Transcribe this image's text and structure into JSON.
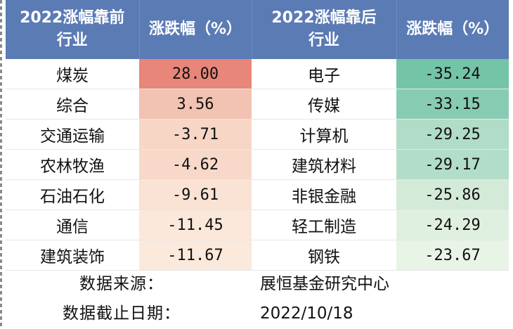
{
  "headers": {
    "top_industry_l1": "2022涨幅靠前",
    "top_industry_l2": "行业",
    "top_change": "涨跌幅（%）",
    "bottom_industry_l1": "2022涨幅靠后",
    "bottom_industry_l2": "行业",
    "bottom_change": "涨跌幅（%）"
  },
  "rows": [
    {
      "top_name": "煤炭",
      "top_value": "28.00",
      "top_color": "#e8867a",
      "bottom_name": "电子",
      "bottom_value": "-35.24",
      "bottom_color": "#74c4a8"
    },
    {
      "top_name": "综合",
      "top_value": "3.56",
      "top_color": "#f2c3b2",
      "bottom_name": "传媒",
      "bottom_value": "-33.15",
      "bottom_color": "#87ccb2"
    },
    {
      "top_name": "交通运输",
      "top_value": "-3.71",
      "top_color": "#f7d6c6",
      "bottom_name": "计算机",
      "bottom_value": "-29.25",
      "bottom_color": "#b0dcc8"
    },
    {
      "top_name": "农林牧渔",
      "top_value": "-4.62",
      "top_color": "#f8d9c9",
      "bottom_name": "建筑材料",
      "bottom_value": "-29.17",
      "bottom_color": "#b2ddc9"
    },
    {
      "top_name": "石油石化",
      "top_value": "-9.61",
      "top_color": "#fae3d4",
      "bottom_name": "非银金融",
      "bottom_value": "-25.86",
      "bottom_color": "#d3ead9"
    },
    {
      "top_name": "通信",
      "top_value": "-11.45",
      "top_color": "#fbe8da",
      "bottom_name": "轻工制造",
      "bottom_value": "-24.29",
      "bottom_color": "#e0f0e0"
    },
    {
      "top_name": "建筑装饰",
      "top_value": "-11.67",
      "top_color": "#fbe9dc",
      "bottom_name": "钢铁",
      "bottom_value": "-23.67",
      "bottom_color": "#e8f4e6"
    }
  ],
  "footer": {
    "source_label": "数据来源：",
    "source_value": "展恒基金研究中心",
    "date_label": "数据截止日期：",
    "date_value": "2022/10/18"
  }
}
